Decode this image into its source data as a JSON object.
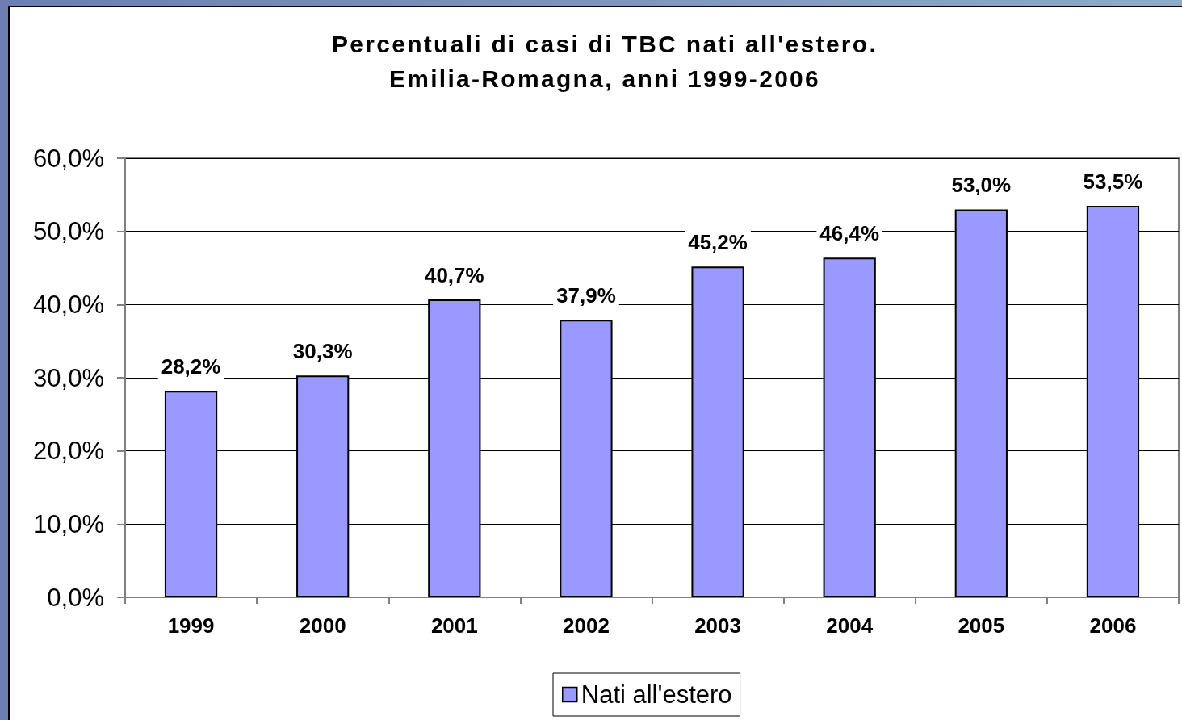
{
  "chart_data": {
    "type": "bar",
    "title": "Percentuali di casi di TBC nati all'estero.",
    "subtitle": "Emilia-Romagna, anni 1999-2006",
    "categories": [
      "1999",
      "2000",
      "2001",
      "2002",
      "2003",
      "2004",
      "2005",
      "2006"
    ],
    "series": [
      {
        "name": "Nati all'estero",
        "color": "#9999ff",
        "values": [
          28.2,
          30.3,
          40.7,
          37.9,
          45.2,
          46.4,
          53.0,
          53.5
        ],
        "value_labels": [
          "28,2%",
          "30,3%",
          "40,7%",
          "37,9%",
          "45,2%",
          "46,4%",
          "53,0%",
          "53,5%"
        ]
      }
    ],
    "ylim": [
      0,
      60
    ],
    "yticks": [
      {
        "value": 0,
        "label": "0,0%"
      },
      {
        "value": 10,
        "label": "10,0%"
      },
      {
        "value": 20,
        "label": "20,0%"
      },
      {
        "value": 30,
        "label": "30,0%"
      },
      {
        "value": 40,
        "label": "40,0%"
      },
      {
        "value": 50,
        "label": "50,0%"
      },
      {
        "value": 60,
        "label": "60,0%"
      }
    ],
    "grid": "y",
    "legend": "bottom"
  }
}
